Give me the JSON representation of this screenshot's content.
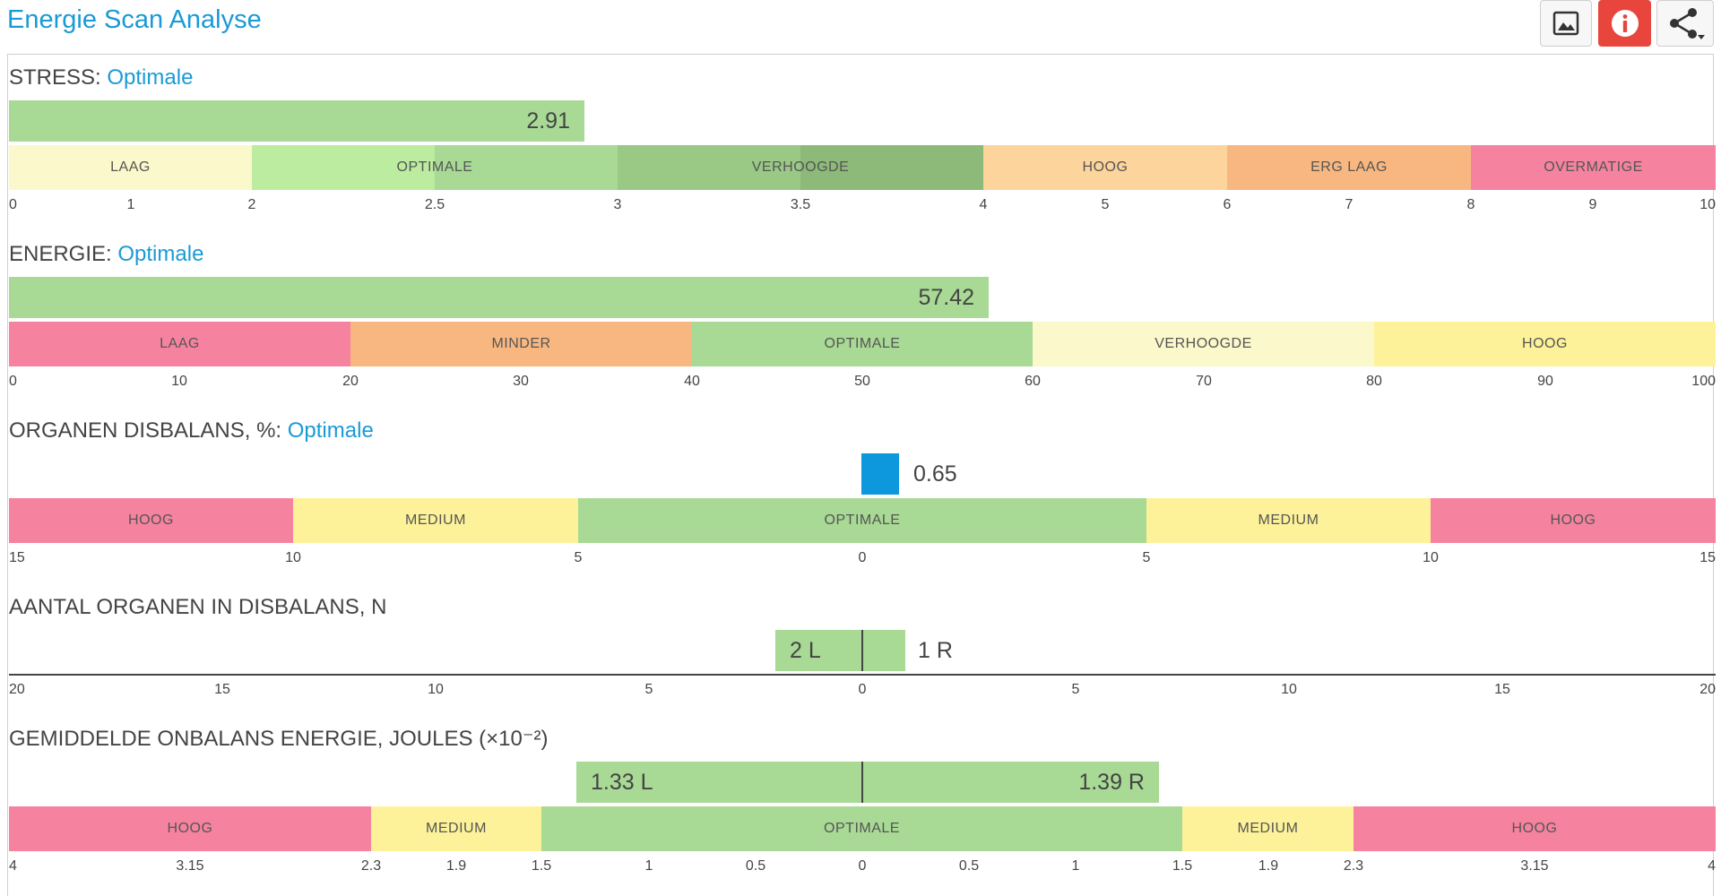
{
  "header": {
    "title": "Energie Scan Analyse"
  },
  "toolbar": {
    "image_icon": "image-icon",
    "info_icon": "info-icon",
    "share_icon": "share-icon",
    "info_color": "#e8453c"
  },
  "stress": {
    "label": "STRESS:",
    "status": "Optimale",
    "value": 2.91,
    "value_label": "2.91",
    "bands": [
      "LAAG",
      "OPTIMALE",
      "VERHOOGDE",
      "HOOG",
      "ERG LAAG",
      "OVERMATIGE"
    ],
    "ticks": [
      "0",
      "1",
      "2",
      "2.5",
      "3",
      "3.5",
      "4",
      "5",
      "6",
      "7",
      "8",
      "9",
      "10"
    ]
  },
  "energie": {
    "label": "ENERGIE:",
    "status": "Optimale",
    "value": 57.42,
    "value_label": "57.42",
    "bands": [
      "LAAG",
      "MINDER",
      "OPTIMALE",
      "VERHOOGDE",
      "HOOG"
    ],
    "ticks": [
      "0",
      "10",
      "20",
      "30",
      "40",
      "50",
      "60",
      "70",
      "80",
      "90",
      "100"
    ]
  },
  "organen": {
    "label": "ORGANEN DISBALANS, %:",
    "status": "Optimale",
    "value": 0.65,
    "value_label": "0.65",
    "bands": [
      "HOOG",
      "MEDIUM",
      "OPTIMALE",
      "MEDIUM",
      "HOOG"
    ],
    "ticks": [
      "15",
      "10",
      "5",
      "0",
      "5",
      "10",
      "15"
    ]
  },
  "aantal": {
    "label": "AANTAL ORGANEN IN DISBALANS, N",
    "left_value": 2,
    "right_value": 1,
    "left_label": "2 L",
    "right_label": "1 R",
    "ticks": [
      "20",
      "15",
      "10",
      "5",
      "0",
      "5",
      "10",
      "15",
      "20"
    ]
  },
  "gemiddelde": {
    "label": "GEMIDDELDE ONBALANS ENERGIE, JOULES (×10⁻²)",
    "left_value": 1.33,
    "right_value": 1.39,
    "left_label": "1.33 L",
    "right_label": "1.39 R",
    "bands": [
      "HOOG",
      "MEDIUM",
      "OPTIMALE",
      "MEDIUM",
      "HOOG"
    ],
    "ticks": [
      "4",
      "3.15",
      "2.3",
      "1.9",
      "1.5",
      "1",
      "0.5",
      "0",
      "0.5",
      "1",
      "1.5",
      "1.9",
      "2.3",
      "3.15",
      "4"
    ]
  }
}
